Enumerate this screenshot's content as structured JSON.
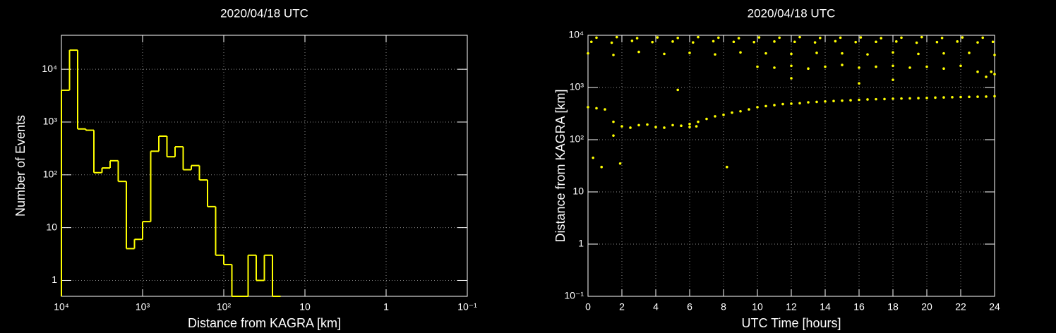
{
  "chart_data": [
    {
      "type": "histogram",
      "title": "2020/04/18 UTC",
      "x_label": "Distance from KAGRA [km]",
      "y_label": "Number of Events",
      "bins": [
        10000,
        7943,
        6310,
        5012,
        3981,
        3162,
        2512,
        1995,
        1585,
        1259,
        1000,
        794.3,
        631.0,
        501.2,
        398.1,
        316.2,
        251.2,
        199.5,
        158.5,
        125.9,
        100,
        79.43,
        63.1,
        50.12,
        39.81,
        31.62,
        25.12,
        19.95
      ],
      "values": [
        4000,
        23000,
        740,
        700,
        110,
        135,
        185,
        75,
        4,
        6,
        13,
        280,
        540,
        220,
        340,
        125,
        150,
        80,
        25,
        3,
        2,
        0,
        0,
        3,
        1,
        3,
        0
      ],
      "color": "#ffff00",
      "x_log": true,
      "y_log": true,
      "grid": true,
      "xlim": [
        10000,
        0.1
      ],
      "ylim": [
        0.5,
        44000
      ],
      "xticks": [
        {
          "value": 10000,
          "label": "10⁴"
        },
        {
          "value": 1000,
          "label": "10³"
        },
        {
          "value": 100,
          "label": "10²"
        },
        10,
        1,
        {
          "value": 0.1,
          "label": "10⁻¹"
        }
      ],
      "yticks": [
        1,
        10,
        {
          "value": 100,
          "label": "10²"
        },
        {
          "value": 1000,
          "label": "10³"
        },
        {
          "value": 10000,
          "label": "10⁴"
        }
      ]
    },
    {
      "type": "scatter",
      "title": "2020/04/18 UTC",
      "x_label": "UTC Time [hours]",
      "y_label": "Distance from KAGRA [km]",
      "x": [
        0,
        0.5,
        1,
        1.5,
        2,
        2.5,
        3,
        3.5,
        4,
        4.5,
        5,
        5.5,
        6,
        6.5,
        7,
        7.5,
        8,
        8.5,
        9,
        9.5,
        10,
        10.5,
        11,
        11.5,
        12,
        12.5,
        13,
        13.5,
        14,
        14.5,
        15,
        15.5,
        16,
        16.5,
        17,
        17.5,
        18,
        18.5,
        19,
        19.5,
        20,
        20.5,
        21,
        21.5,
        22,
        22.5,
        23,
        23.5,
        24,
        6,
        6.4,
        0.3,
        0.8,
        1.9,
        8.2,
        1.5,
        5.3,
        23.5,
        23.8,
        16,
        12,
        18,
        10,
        11,
        12,
        13,
        14,
        15,
        16,
        17,
        18,
        19,
        20,
        21,
        22,
        23,
        24,
        0,
        1.5,
        3,
        4.5,
        6,
        7.5,
        9,
        10.5,
        12,
        13.5,
        15,
        16.5,
        18,
        19.5,
        21,
        22.5,
        24,
        0.2,
        1.4,
        2.6,
        3.8,
        5,
        6.2,
        7.4,
        8.6,
        9.8,
        11,
        12.2,
        13.4,
        14.6,
        15.8,
        17,
        18.2,
        19.4,
        20.6,
        21.8,
        23,
        23.9,
        0.5,
        1.7,
        2.9,
        4.1,
        5.3,
        6.5,
        7.7,
        8.9,
        10.1,
        11.3,
        12.5,
        13.7,
        14.9,
        16.1,
        17.3,
        18.5,
        19.7,
        20.9,
        22.1,
        23.3
      ],
      "values": [
        420,
        400,
        380,
        220,
        180,
        170,
        190,
        195,
        175,
        170,
        190,
        185,
        200,
        220,
        250,
        280,
        300,
        330,
        350,
        380,
        420,
        440,
        460,
        480,
        490,
        500,
        520,
        530,
        540,
        550,
        560,
        570,
        580,
        590,
        595,
        600,
        610,
        615,
        620,
        625,
        630,
        640,
        645,
        650,
        655,
        660,
        665,
        670,
        680,
        175,
        180,
        45,
        30,
        35,
        30,
        120,
        900,
        1600,
        2000,
        1200,
        1500,
        1400,
        2500,
        2400,
        2600,
        2300,
        2500,
        2700,
        2400,
        2500,
        2600,
        2400,
        2500,
        2300,
        2600,
        2000,
        1800,
        4500,
        4200,
        4800,
        4400,
        4600,
        4300,
        4700,
        4500,
        4400,
        4600,
        4500,
        4300,
        4700,
        4400,
        4500,
        4600,
        4200,
        7500,
        7200,
        7800,
        7400,
        7600,
        7300,
        7700,
        7500,
        7400,
        7600,
        7500,
        7300,
        7700,
        7400,
        7500,
        7600,
        7200,
        7400,
        7600,
        7300,
        7500,
        9000,
        9200,
        8800,
        9100,
        8900,
        9200,
        9000,
        8800,
        9100,
        9000,
        9200,
        8900,
        9000,
        9100,
        8800,
        9000,
        9200,
        8900,
        9100,
        9000
      ],
      "color": "#ffff00",
      "y_log": true,
      "grid": true,
      "xlim": [
        0,
        24
      ],
      "ylim": [
        0.1,
        10000
      ],
      "xticks": [
        0,
        2,
        4,
        6,
        8,
        10,
        12,
        14,
        16,
        18,
        20,
        22,
        24
      ],
      "yticks": [
        {
          "value": 0.1,
          "label": "10⁻¹"
        },
        1,
        10,
        {
          "value": 100,
          "label": "10²"
        },
        {
          "value": 1000,
          "label": "10³"
        },
        {
          "value": 10000,
          "label": "10⁴"
        }
      ]
    }
  ]
}
